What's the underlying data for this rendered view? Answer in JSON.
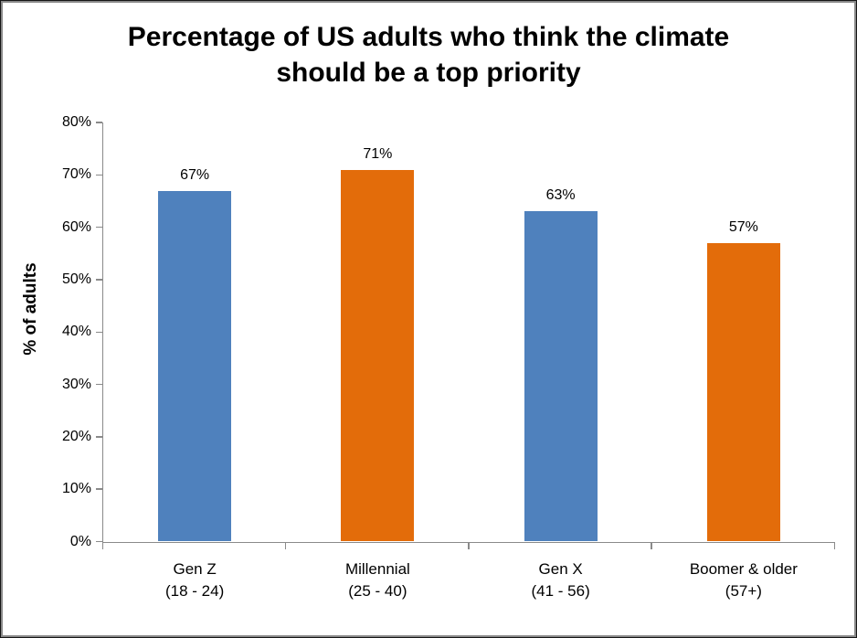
{
  "frame": {
    "background": "#ffffff",
    "outer_border_color": "#161616",
    "inner_border_color": "#898989"
  },
  "chart_data": {
    "type": "bar",
    "title": "Percentage of US adults who think the climate should be a top priority",
    "title_lines": [
      "Percentage of US adults who think the climate",
      "should be a top priority"
    ],
    "xlabel": "",
    "ylabel": "% of adults",
    "ylim": [
      0,
      80
    ],
    "ytick_step": 10,
    "yticks": [
      "0%",
      "10%",
      "20%",
      "30%",
      "40%",
      "50%",
      "60%",
      "70%",
      "80%"
    ],
    "grid": false,
    "legend": "none",
    "categories": [
      {
        "name": "Gen Z",
        "range": "(18 - 24)"
      },
      {
        "name": "Millennial",
        "range": "(25 - 40)"
      },
      {
        "name": "Gen X",
        "range": "(41 - 56)"
      },
      {
        "name": "Boomer & older",
        "range": "(57+)"
      }
    ],
    "values": [
      67,
      71,
      63,
      57
    ],
    "data_labels": [
      "67%",
      "71%",
      "63%",
      "57%"
    ],
    "bar_colors": [
      "#4F81BD",
      "#E36C0A",
      "#4F81BD",
      "#E36C0A"
    ],
    "axis_color": "#8A8A8A",
    "text_color": "#000000"
  }
}
